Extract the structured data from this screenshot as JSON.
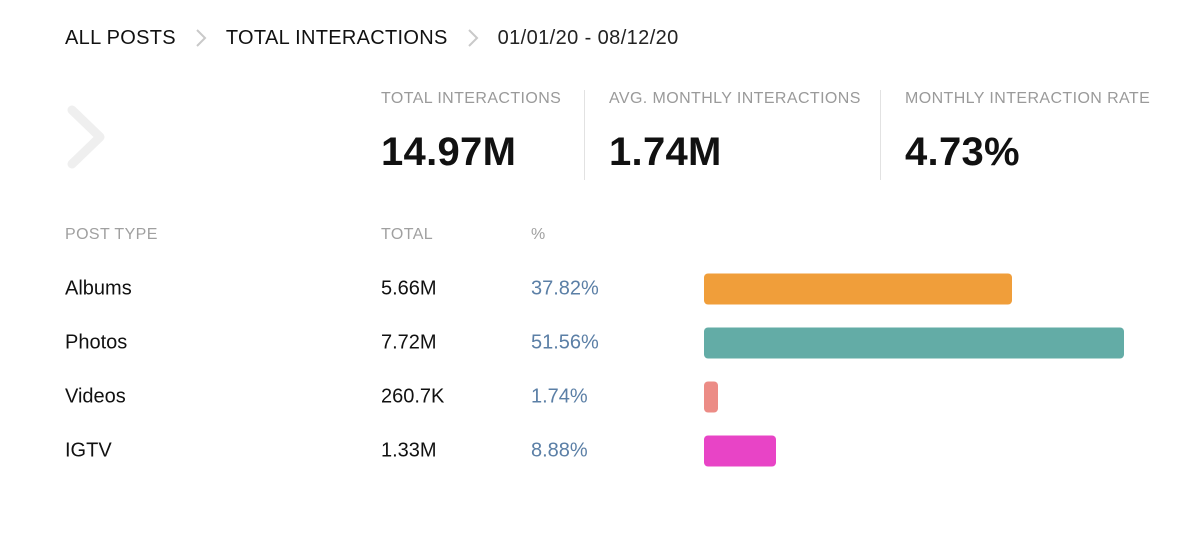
{
  "breadcrumb": {
    "items": [
      "ALL POSTS",
      "TOTAL INTERACTIONS"
    ],
    "date_range": "01/01/20 - 08/12/20"
  },
  "stats": [
    {
      "label": "TOTAL INTERACTIONS",
      "value": "14.97M"
    },
    {
      "label": "AVG. MONTHLY INTERACTIONS",
      "value": "1.74M"
    },
    {
      "label": "MONTHLY INTERACTION RATE",
      "value": "4.73%"
    }
  ],
  "table": {
    "headers": {
      "type": "POST TYPE",
      "total": "TOTAL",
      "pct": "%"
    },
    "rows": [
      {
        "type": "Albums",
        "total": "5.66M",
        "pct": "37.82%",
        "share": 37.82,
        "color": "#f09e3a"
      },
      {
        "type": "Photos",
        "total": "7.72M",
        "pct": "51.56%",
        "share": 51.56,
        "color": "#63aca6"
      },
      {
        "type": "Videos",
        "total": "260.7K",
        "pct": "1.74%",
        "share": 1.74,
        "color": "#ec8c86"
      },
      {
        "type": "IGTV",
        "total": "1.33M",
        "pct": "8.88%",
        "share": 8.88,
        "color": "#e844c6"
      }
    ]
  },
  "icons": {
    "breadcrumb_separator": "chevron-right-icon",
    "side_nav": "chevron-right-icon"
  }
}
